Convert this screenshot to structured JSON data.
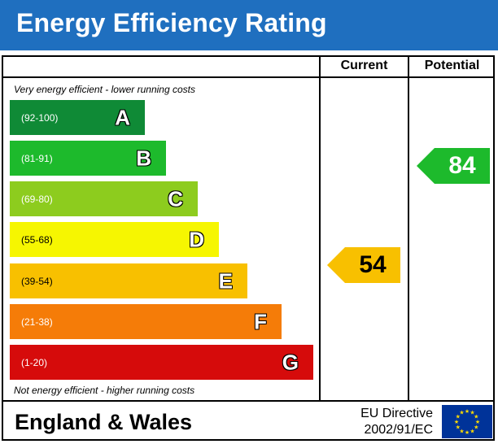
{
  "title": "Energy Efficiency Rating",
  "columns": {
    "current": "Current",
    "potential": "Potential"
  },
  "notes": {
    "top": "Very energy efficient - lower running costs",
    "bottom": "Not energy efficient - higher running costs"
  },
  "bands": [
    {
      "letter": "A",
      "range": "(92-100)",
      "color": "#0f8a36"
    },
    {
      "letter": "B",
      "range": "(81-91)",
      "color": "#1dba2c"
    },
    {
      "letter": "C",
      "range": "(69-80)",
      "color": "#8dcc1e"
    },
    {
      "letter": "D",
      "range": "(55-68)",
      "color": "#f6f601"
    },
    {
      "letter": "E",
      "range": "(39-54)",
      "color": "#f8c000"
    },
    {
      "letter": "F",
      "range": "(21-38)",
      "color": "#f57c08"
    },
    {
      "letter": "G",
      "range": "(1-20)",
      "color": "#d60b0b"
    }
  ],
  "ratings": {
    "current": {
      "value": "54",
      "band": "E",
      "color": "#f8c000"
    },
    "potential": {
      "value": "84",
      "band": "B",
      "color": "#1dba2c"
    }
  },
  "footer": {
    "region": "England & Wales",
    "directive_line1": "EU Directive",
    "directive_line2": "2002/91/EC",
    "flag_icon": "eu-flag-icon"
  },
  "colors": {
    "header": "#1f6fbf",
    "eu_blue": "#003399",
    "eu_star": "#ffdd00"
  }
}
